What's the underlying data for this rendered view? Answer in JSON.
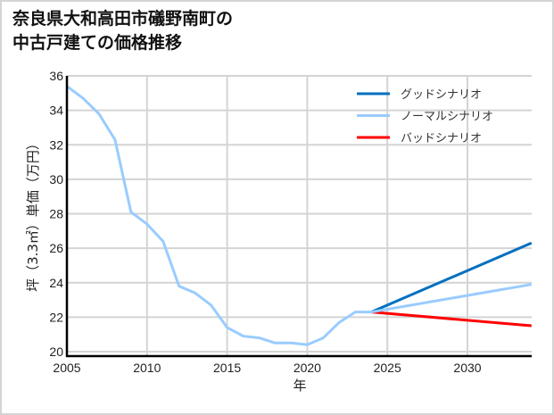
{
  "title": {
    "line1": "奈良県大和高田市礒野南町の",
    "line2": "中古戸建ての価格推移"
  },
  "colors": {
    "good": "#0070c0",
    "normal": "#99ccff",
    "bad": "#ff0000",
    "grid": "#d4d4d4",
    "axis": "#000000"
  },
  "chart_data": {
    "type": "line",
    "title": "奈良県大和高田市礒野南町の中古戸建ての価格推移",
    "xlabel": "年",
    "ylabel": "坪（3.3㎡）単価（万円）",
    "xlim": [
      2005,
      2034
    ],
    "ylim": [
      20,
      36
    ],
    "x_ticks": [
      2005,
      2010,
      2015,
      2020,
      2025,
      2030
    ],
    "y_ticks": [
      20,
      22,
      24,
      26,
      28,
      30,
      32,
      34,
      36
    ],
    "grid": true,
    "legend_position": "top-right",
    "series": [
      {
        "name": "ノーマルシナリオ",
        "color": "#99ccff",
        "x": [
          2005,
          2006,
          2007,
          2008,
          2009,
          2010,
          2011,
          2012,
          2013,
          2014,
          2015,
          2016,
          2017,
          2018,
          2019,
          2020,
          2021,
          2022,
          2023,
          2024,
          2034
        ],
        "values": [
          35.4,
          34.7,
          33.8,
          32.3,
          28.1,
          27.4,
          26.4,
          23.8,
          23.4,
          22.7,
          21.4,
          20.9,
          20.8,
          20.5,
          20.5,
          20.4,
          20.8,
          21.7,
          22.3,
          22.3,
          23.9
        ]
      },
      {
        "name": "グッドシナリオ",
        "color": "#0070c0",
        "x": [
          2024,
          2034
        ],
        "values": [
          22.3,
          26.3
        ]
      },
      {
        "name": "バッドシナリオ",
        "color": "#ff0000",
        "x": [
          2024,
          2034
        ],
        "values": [
          22.3,
          21.5
        ]
      }
    ]
  },
  "legend": [
    {
      "label": "グッドシナリオ",
      "color": "#0070c0"
    },
    {
      "label": "ノーマルシナリオ",
      "color": "#99ccff"
    },
    {
      "label": "バッドシナリオ",
      "color": "#ff0000"
    }
  ]
}
